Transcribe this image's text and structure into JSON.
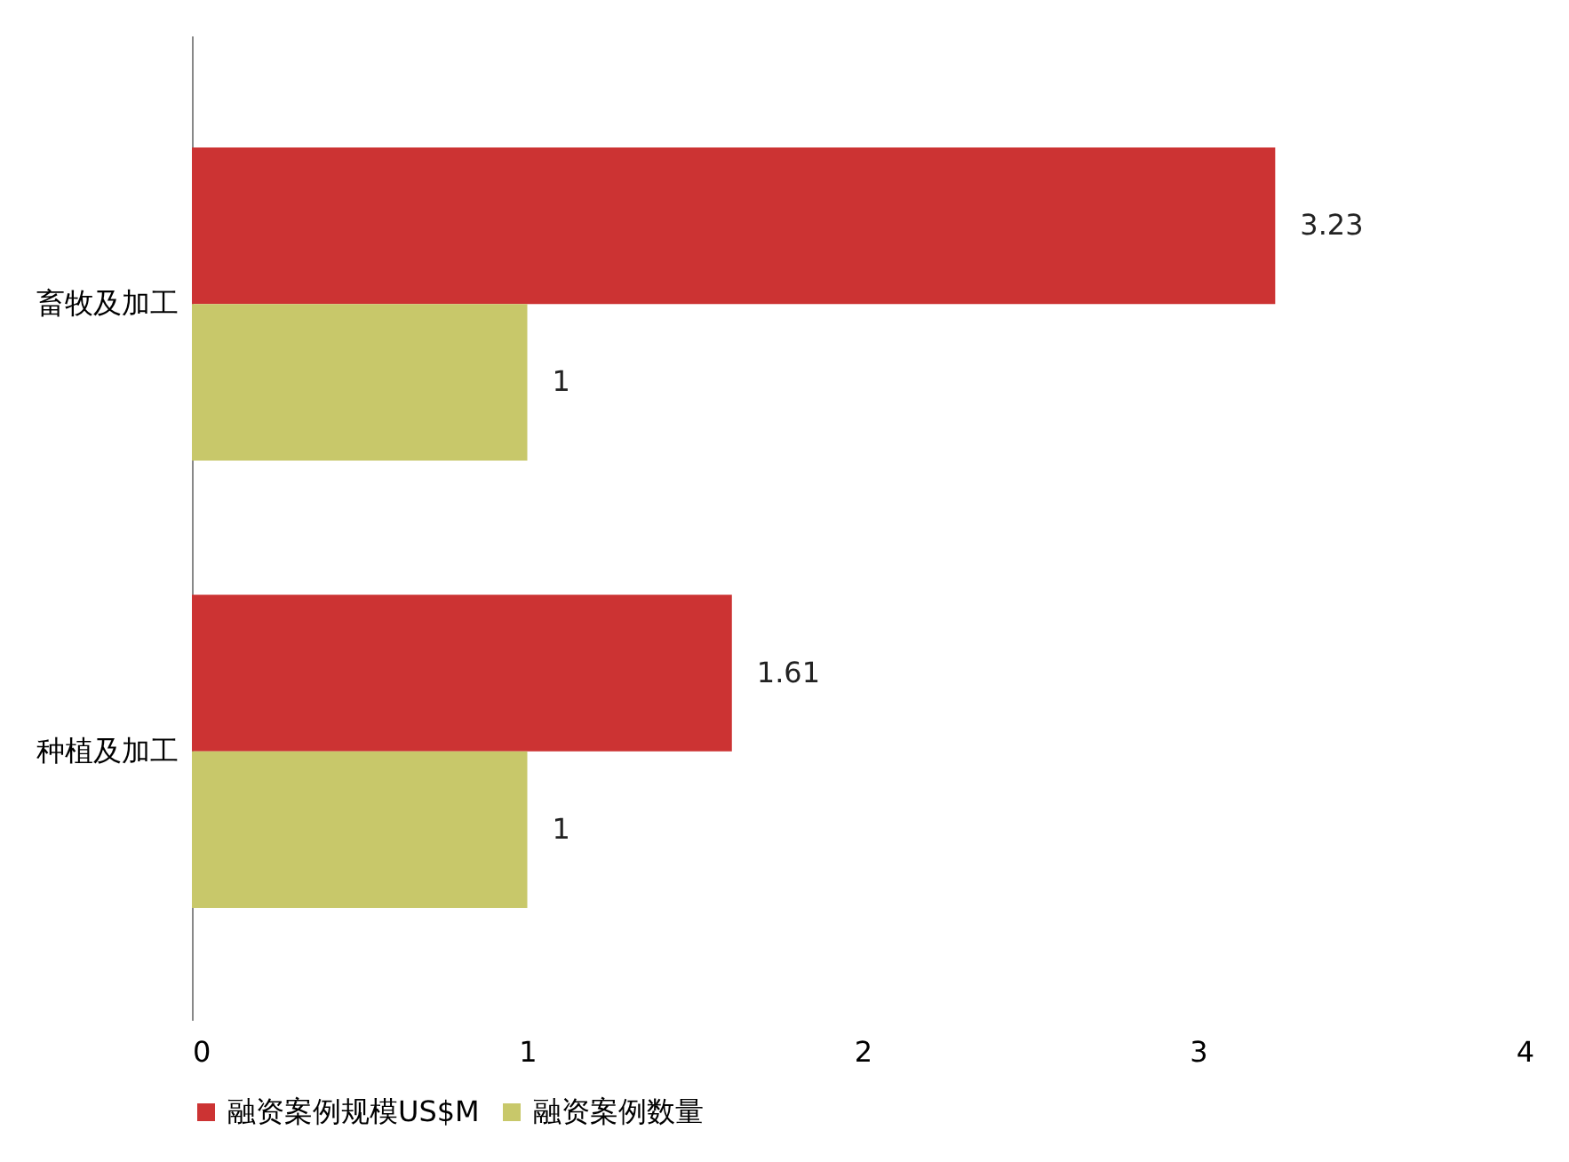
{
  "chart_data": {
    "type": "bar",
    "orientation": "horizontal",
    "categories": [
      "畜牧及加工",
      "种植及加工"
    ],
    "series": [
      {
        "name": "融资案例规模US$M",
        "color": "#cc3333",
        "values": [
          3.23,
          1.61
        ]
      },
      {
        "name": "融资案例数量",
        "color": "#c8c86a",
        "values": [
          1,
          1
        ]
      }
    ],
    "xlim": [
      0,
      4
    ],
    "xticks": [
      0,
      1,
      2,
      3,
      4
    ],
    "grid": false,
    "legend": "bottom",
    "data_labels": true
  }
}
